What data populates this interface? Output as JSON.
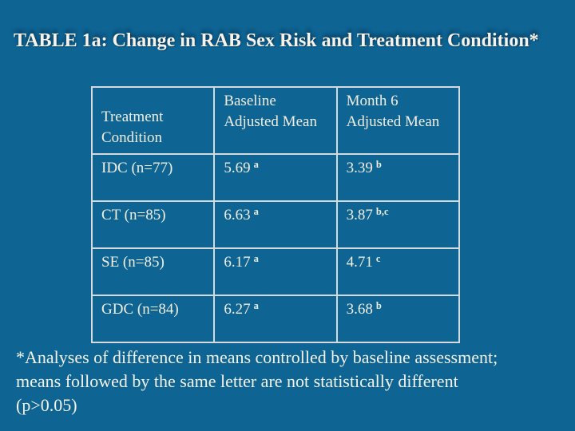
{
  "slide": {
    "title": "TABLE 1a: Change in RAB Sex Risk and Treatment Condition*",
    "background_color": "#0e6493",
    "border_color": "#d4d9dc",
    "text_color": "#f1eee1"
  },
  "table": {
    "header": {
      "col1": {
        "line1": "Treatment",
        "line2": "Condition"
      },
      "col2": {
        "line1": "Baseline",
        "line2": "Adjusted Mean"
      },
      "col3": {
        "line1": "Month 6",
        "line2": "Adjusted Mean"
      }
    },
    "rows": [
      {
        "condition": "IDC (n=77)",
        "baseline": "5.69",
        "baseline_sup": "a",
        "month6": "3.39",
        "month6_sup": "b"
      },
      {
        "condition": "CT (n=85)",
        "baseline": "6.63",
        "baseline_sup": "a",
        "month6": "3.87",
        "month6_sup": "b,c"
      },
      {
        "condition": "SE (n=85)",
        "baseline": "6.17",
        "baseline_sup": "a",
        "month6": "4.71",
        "month6_sup": "c"
      },
      {
        "condition": "GDC (n=84)",
        "baseline": "6.27",
        "baseline_sup": "a",
        "month6": "3.68",
        "month6_sup": "b"
      }
    ]
  },
  "footnote": {
    "lines": [
      "*Analyses of difference in means controlled by baseline assessment;",
      "means followed by the same letter are not statistically different",
      "(p>0.05)"
    ]
  }
}
